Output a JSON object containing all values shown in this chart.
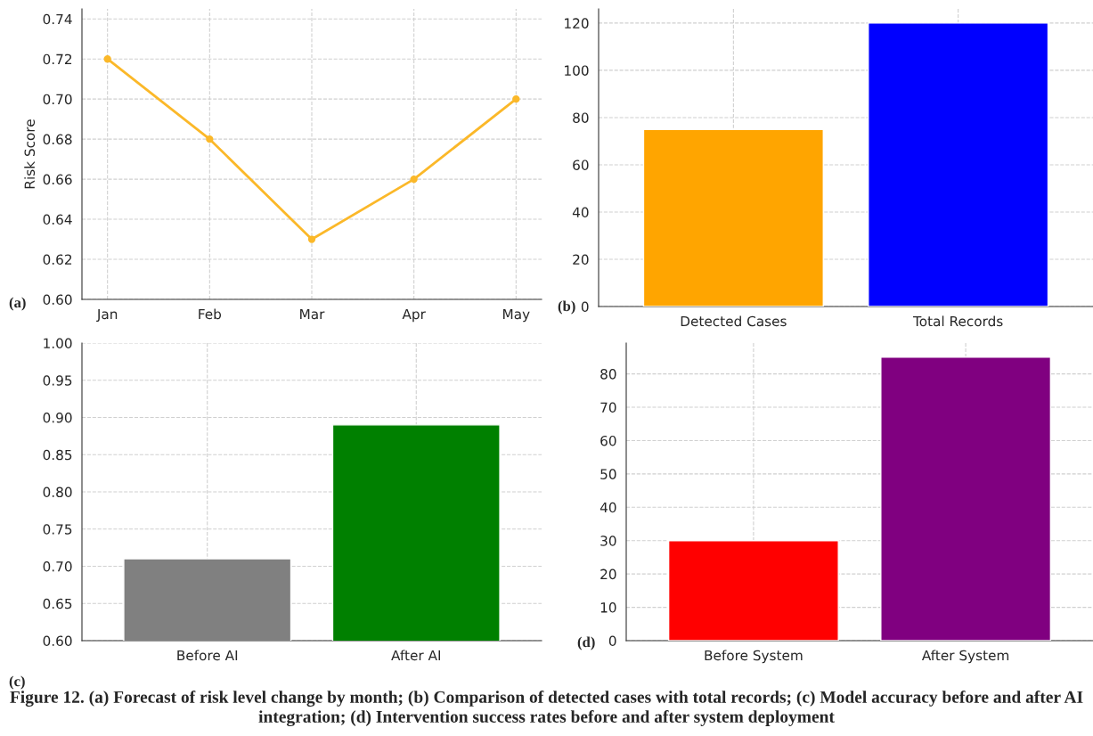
{
  "chart_data": [
    {
      "type": "line",
      "categories": [
        "Jan",
        "Feb",
        "Mar",
        "Apr",
        "May"
      ],
      "ylabel": "Risk Score",
      "ylim": [
        0.6,
        0.745
      ],
      "yticks": [
        {
          "value": 0.6,
          "label": "0.60"
        },
        {
          "value": 0.62,
          "label": "0.62"
        },
        {
          "value": 0.64,
          "label": "0.64"
        },
        {
          "value": 0.66,
          "label": "0.66"
        },
        {
          "value": 0.68,
          "label": "0.68"
        },
        {
          "value": 0.7,
          "label": "0.70"
        },
        {
          "value": 0.72,
          "label": "0.72"
        },
        {
          "value": 0.74,
          "label": "0.74"
        }
      ],
      "grid": true,
      "marker": "circle",
      "line_style": "solid",
      "series": [
        {
          "color": "#fbb829",
          "values": [
            0.72,
            0.68,
            0.63,
            0.66,
            0.7
          ]
        }
      ],
      "annotations": [
        "(a)"
      ]
    },
    {
      "type": "bar",
      "categories": [
        "Detected Cases",
        "Total Records"
      ],
      "values": [
        75,
        120
      ],
      "colors": [
        "#ffa500",
        "#0000ff"
      ],
      "ylim": [
        0,
        126
      ],
      "yticks": [
        0,
        20,
        40,
        60,
        80,
        100,
        120
      ],
      "grid": true,
      "annotations": [
        "(b)"
      ]
    },
    {
      "type": "bar",
      "categories": [
        "Before AI",
        "After AI"
      ],
      "values": [
        0.71,
        0.89
      ],
      "colors": [
        "#808080",
        "#008000"
      ],
      "ylim": [
        0.6,
        1.0
      ],
      "yticks": [
        {
          "value": 0.6,
          "label": "0.60"
        },
        {
          "value": 0.65,
          "label": "0.65"
        },
        {
          "value": 0.7,
          "label": "0.70"
        },
        {
          "value": 0.75,
          "label": "0.75"
        },
        {
          "value": 0.8,
          "label": "0.80"
        },
        {
          "value": 0.85,
          "label": "0.85"
        },
        {
          "value": 0.9,
          "label": "0.90"
        },
        {
          "value": 0.95,
          "label": "0.95"
        },
        {
          "value": 1.0,
          "label": "1.00"
        }
      ],
      "grid": true,
      "annotations": [
        "(c)"
      ]
    },
    {
      "type": "bar",
      "categories": [
        "Before System",
        "After System"
      ],
      "values": [
        30,
        85
      ],
      "colors": [
        "#ff0000",
        "#800080"
      ],
      "ylim": [
        0,
        89.25
      ],
      "yticks": [
        0,
        10,
        20,
        30,
        40,
        50,
        60,
        70,
        80
      ],
      "grid": true,
      "annotations": [
        "(d)",
        "Figure 12. (a) Forecast of risk level change by month; (b) Comparison of detected cases with total records; (c) Model accuracy before and after AI integration; (d) Intervention success rates before and after system deployment"
      ]
    }
  ]
}
